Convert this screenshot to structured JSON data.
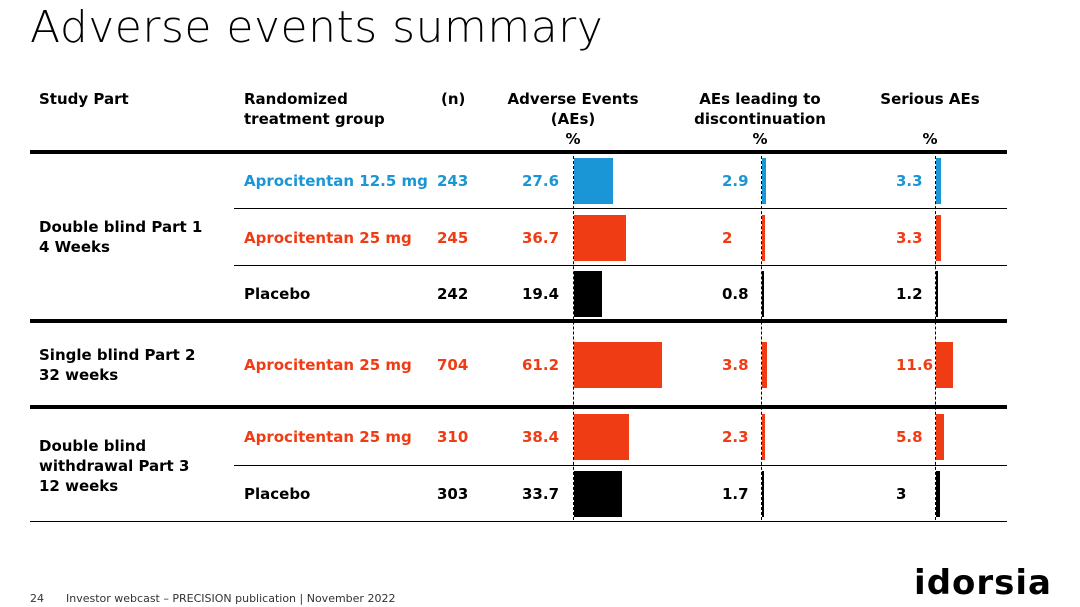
{
  "title": "Adverse events summary",
  "headers": {
    "study_part": "Study Part",
    "group_line1": "Randomized",
    "group_line2": "treatment group",
    "n": "(n)",
    "ae_line1": "Adverse Events",
    "ae_line2": "(AEs)",
    "ae_unit": "%",
    "disc_line1": "AEs leading to",
    "disc_line2": "discontinuation",
    "disc_unit": "%",
    "serious_line1": "Serious AEs",
    "serious_unit": "%"
  },
  "colors": {
    "blue": "#1a95d6",
    "red": "#f03c14",
    "black": "#000000"
  },
  "parts": [
    {
      "lines": [
        "Double blind Part 1",
        "4 Weeks"
      ]
    },
    {
      "lines": [
        "Single blind Part 2",
        "32 weeks"
      ]
    },
    {
      "lines": [
        "Double blind",
        "withdrawal Part 3",
        "12 weeks"
      ]
    }
  ],
  "rows": [
    {
      "part": 0,
      "group": "Aprocitentan 12.5 mg",
      "color": "blue",
      "n": "243",
      "ae": 27.6,
      "disc": 2.9,
      "serious": 3.3
    },
    {
      "part": 0,
      "group": "Aprocitentan 25 mg",
      "color": "red",
      "n": "245",
      "ae": 36.7,
      "disc": 2,
      "serious": 3.3
    },
    {
      "part": 0,
      "group": "Placebo",
      "color": "black",
      "n": "242",
      "ae": 19.4,
      "disc": 0.8,
      "serious": 1.2
    },
    {
      "part": 1,
      "group": "Aprocitentan 25 mg",
      "color": "red",
      "n": "704",
      "ae": 61.2,
      "disc": 3.8,
      "serious": 11.6
    },
    {
      "part": 2,
      "group": "Aprocitentan 25 mg",
      "color": "red",
      "n": "310",
      "ae": 38.4,
      "disc": 2.3,
      "serious": 5.8
    },
    {
      "part": 2,
      "group": "Placebo",
      "color": "black",
      "n": "303",
      "ae": 33.7,
      "disc": 1.7,
      "serious": 3
    }
  ],
  "footer": {
    "page": "24",
    "text": "Investor webcast – PRECISION publication | November 2022"
  },
  "logo": "idorsia"
}
